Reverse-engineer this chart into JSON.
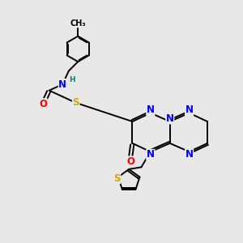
{
  "bg_color": "#e8e8e8",
  "bond_color": "#000000",
  "N_color": "#0000ff",
  "O_color": "#ff0000",
  "S_color": "#ccaa00",
  "H_color": "#008080",
  "font_size_atom": 8.5,
  "line_width": 1.4,
  "figsize": [
    3.0,
    3.0
  ],
  "dpi": 100,
  "xlim": [
    0,
    10
  ],
  "ylim": [
    0,
    10
  ]
}
